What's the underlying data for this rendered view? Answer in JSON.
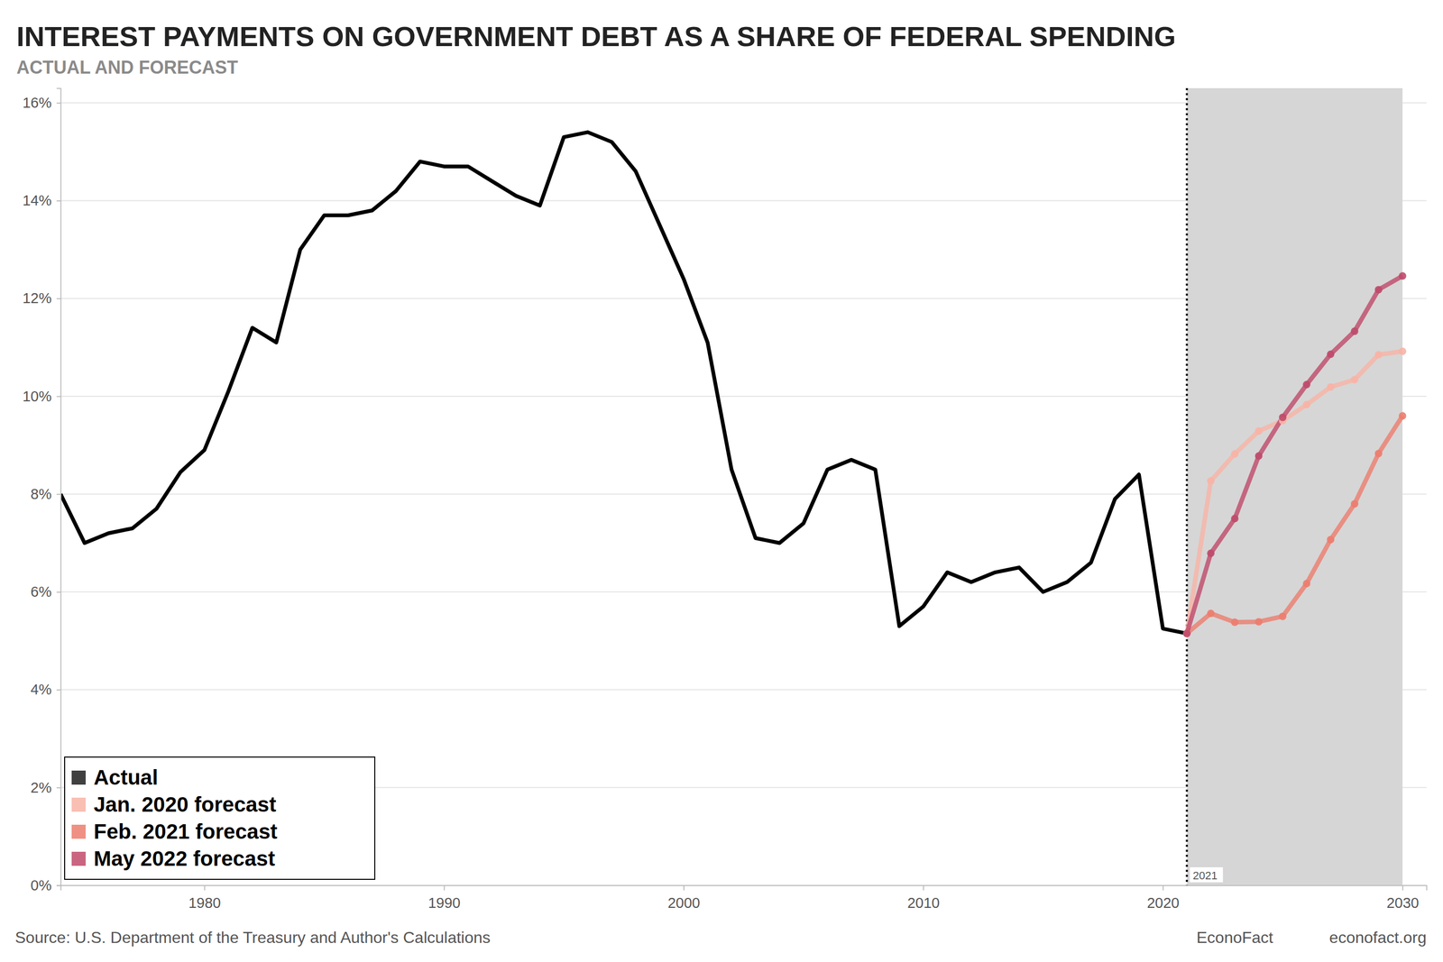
{
  "chart_data": {
    "type": "line",
    "title": "INTEREST PAYMENTS ON GOVERNMENT DEBT AS A SHARE OF FEDERAL SPENDING",
    "subtitle": "ACTUAL AND FORECAST",
    "source": "Source: U.S. Department of the Treasury and Author's Calculations",
    "footer": [
      "EconoFact",
      "econofact.org"
    ],
    "x": [
      1974,
      1975,
      1976,
      1977,
      1978,
      1979,
      1980,
      1981,
      1982,
      1983,
      1984,
      1985,
      1986,
      1987,
      1988,
      1989,
      1990,
      1991,
      1992,
      1993,
      1994,
      1995,
      1996,
      1997,
      1998,
      1999,
      2000,
      2001,
      2002,
      2003,
      2004,
      2005,
      2006,
      2007,
      2008,
      2009,
      2010,
      2011,
      2012,
      2013,
      2014,
      2015,
      2016,
      2017,
      2018,
      2019,
      2020,
      2021,
      2022,
      2023,
      2024,
      2025,
      2026,
      2027,
      2028,
      2029,
      2030
    ],
    "series": [
      {
        "name": "Actual",
        "color": "#000000",
        "values": [
          8.0,
          7.0,
          7.2,
          7.3,
          7.7,
          8.45,
          8.9,
          10.1,
          11.4,
          11.1,
          13.0,
          13.7,
          13.7,
          13.8,
          14.2,
          14.8,
          14.7,
          14.7,
          14.4,
          14.1,
          13.9,
          15.3,
          15.4,
          15.2,
          14.6,
          13.5,
          12.4,
          11.1,
          8.5,
          7.1,
          7.0,
          7.4,
          8.5,
          8.7,
          8.5,
          5.3,
          5.7,
          6.4,
          6.2,
          6.4,
          6.5,
          6.0,
          6.2,
          6.6,
          7.9,
          8.4,
          5.25,
          5.15,
          null,
          null,
          null,
          null,
          null,
          null,
          null,
          null,
          null
        ]
      },
      {
        "name": "Jan. 2020 forecast",
        "color": "#f8b4a6",
        "marker": "circle",
        "values": [
          null,
          null,
          null,
          null,
          null,
          null,
          null,
          null,
          null,
          null,
          null,
          null,
          null,
          null,
          null,
          null,
          null,
          null,
          null,
          null,
          null,
          null,
          null,
          null,
          null,
          null,
          null,
          null,
          null,
          null,
          null,
          null,
          null,
          null,
          null,
          null,
          null,
          null,
          null,
          null,
          null,
          null,
          null,
          null,
          null,
          null,
          null,
          5.15,
          8.27,
          8.82,
          9.29,
          9.5,
          9.83,
          10.19,
          10.34,
          10.85,
          10.92
        ]
      },
      {
        "name": "Feb. 2021 forecast",
        "color": "#ec7d6e",
        "marker": "circle",
        "values": [
          null,
          null,
          null,
          null,
          null,
          null,
          null,
          null,
          null,
          null,
          null,
          null,
          null,
          null,
          null,
          null,
          null,
          null,
          null,
          null,
          null,
          null,
          null,
          null,
          null,
          null,
          null,
          null,
          null,
          null,
          null,
          null,
          null,
          null,
          null,
          null,
          null,
          null,
          null,
          null,
          null,
          null,
          null,
          null,
          null,
          null,
          null,
          5.15,
          5.56,
          5.38,
          5.39,
          5.5,
          6.17,
          7.07,
          7.8,
          8.83,
          9.6
        ]
      },
      {
        "name": "May 2022 forecast",
        "color": "#bf4a6a",
        "marker": "circle",
        "values": [
          null,
          null,
          null,
          null,
          null,
          null,
          null,
          null,
          null,
          null,
          null,
          null,
          null,
          null,
          null,
          null,
          null,
          null,
          null,
          null,
          null,
          null,
          null,
          null,
          null,
          null,
          null,
          null,
          null,
          null,
          null,
          null,
          null,
          null,
          null,
          null,
          null,
          null,
          null,
          null,
          null,
          null,
          null,
          null,
          null,
          null,
          null,
          5.15,
          6.79,
          7.5,
          8.78,
          9.57,
          10.24,
          10.86,
          11.33,
          12.18,
          12.46
        ]
      }
    ],
    "xlim": [
      1974,
      2031
    ],
    "xticks": [
      1980,
      1990,
      2000,
      2010,
      2020,
      2030
    ],
    "ylim": [
      0,
      16.3
    ],
    "yticks": [
      {
        "value": 0,
        "label": "0%"
      },
      {
        "value": 2,
        "label": "2%"
      },
      {
        "value": 4,
        "label": "4%"
      },
      {
        "value": 6,
        "label": "6%"
      },
      {
        "value": 8,
        "label": "8%"
      },
      {
        "value": 10,
        "label": "10%"
      },
      {
        "value": 12,
        "label": "12%"
      },
      {
        "value": 14,
        "label": "14%"
      },
      {
        "value": 16,
        "label": "16%"
      }
    ],
    "grid": true,
    "legend": "lower left",
    "shaded_range": [
      2021,
      2030
    ],
    "annotations": [
      {
        "text": "2021",
        "x": 2021
      }
    ]
  }
}
